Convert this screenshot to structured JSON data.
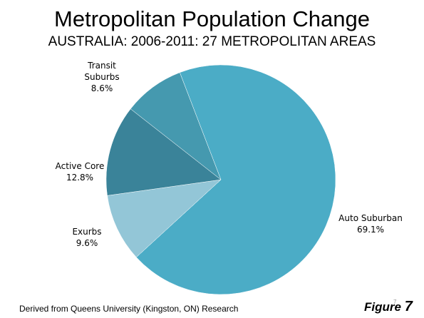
{
  "chart_data": {
    "type": "pie",
    "title": "Metropolitan Population Change",
    "subtitle": "AUSTRALIA: 2006-2011: 27 METROPOLITAN AREAS",
    "slices": [
      {
        "label": "Auto Suburban",
        "value": 69.1,
        "value_label": "69.1%",
        "color": "#4BACC6"
      },
      {
        "label": "Exurbs",
        "value": 9.6,
        "value_label": "9.6%",
        "color": "#93C6D7"
      },
      {
        "label": "Active Core",
        "value": 12.8,
        "value_label": "12.8%",
        "color": "#3A8399"
      },
      {
        "label": "Transit Suburbs",
        "value": 8.6,
        "value_label": "8.6%",
        "color": "#4599AF"
      }
    ]
  },
  "footer": {
    "source": "Derived from Queens University (Kingston, ON) Research",
    "figure_word": "Figure",
    "figure_number": "7",
    "page_number": "7"
  }
}
